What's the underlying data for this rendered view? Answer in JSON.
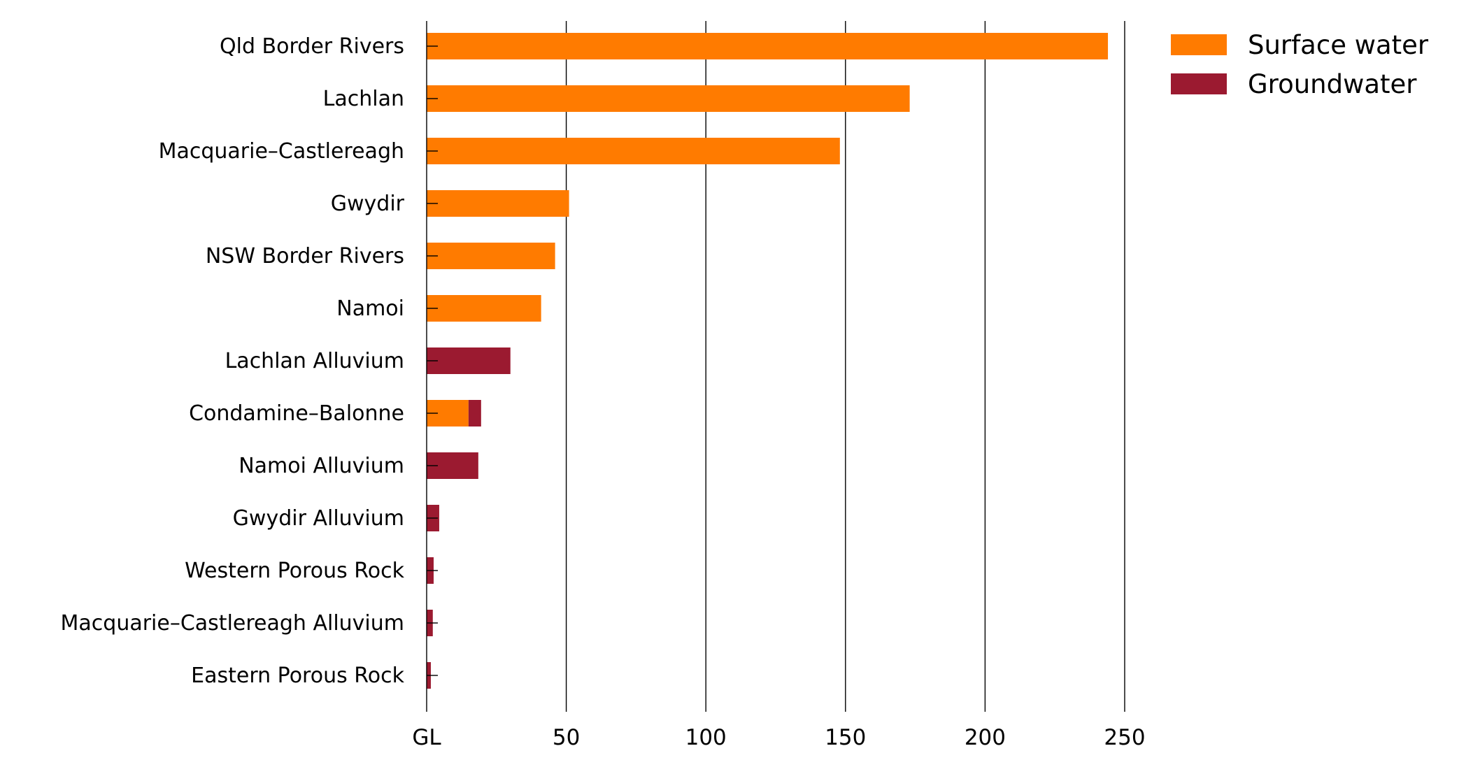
{
  "chart_data": {
    "type": "bar",
    "orientation": "horizontal",
    "stacked": true,
    "categories": [
      "Qld Border Rivers",
      "Lachlan",
      "Macquarie–Castlereagh",
      "Gwydir",
      "NSW Border Rivers",
      "Namoi",
      "Lachlan Alluvium",
      "Condamine–Balonne",
      "Namoi Alluvium",
      "Gwydir Alluvium",
      "Western Porous Rock",
      "Macquarie–Castlereagh Alluvium",
      "Eastern Porous Rock"
    ],
    "series": [
      {
        "name": "Surface water",
        "color": "#ff7b00",
        "values": [
          244,
          173,
          148,
          51,
          46,
          41,
          0,
          15,
          0,
          0,
          0,
          0,
          0
        ]
      },
      {
        "name": "Groundwater",
        "color": "#9b1a30",
        "values": [
          0,
          0,
          0,
          0,
          0,
          0,
          30,
          4.5,
          18.5,
          4.5,
          2.5,
          2.2,
          1.5
        ]
      }
    ],
    "x_ticks": [
      "GL",
      "50",
      "100",
      "150",
      "200",
      "250"
    ],
    "xlim": [
      0,
      250
    ],
    "grid": true,
    "legend_position": "top-right"
  }
}
